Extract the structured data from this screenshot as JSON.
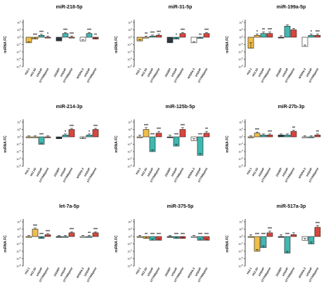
{
  "colors": {
    "H12.1": "#f0be49",
    "H12.1D": "#2f3a45",
    "1411HP": "#ffffff",
    "1411H": "#f0be49",
    "2102EP": "#2f3a45",
    "NTERA-2": "#ffffff",
    "1777NRpmet_a": "#3fb8b0",
    "1777NRpmet_b": "#d9453c",
    "stroke": "#1a1a1a"
  },
  "chart_data": [
    {
      "type": "bar",
      "title": "miR-218-5p",
      "ylabel": "miRNA FC",
      "log_scale": true,
      "ylim_exp": [
        -8,
        4
      ],
      "categories": [
        "H12.1",
        "H12.1D",
        "1411HP",
        "1777NRpmet",
        "2102EP",
        "1411HP",
        "1777NRpmet",
        "NTERA-2",
        "1411HP",
        "1777NRpmet"
      ],
      "groups": [
        {
          "values_exp": [
            -1.5,
            -0.5,
            0.5,
            0.0
          ],
          "errors": [
            0.3,
            0.3,
            0.3,
            0.3
          ],
          "significance": [
            "",
            "***",
            "***",
            "*"
          ],
          "colors": [
            "#f0be49",
            "#f0be49",
            "#3fb8b0",
            "#d9453c"
          ]
        },
        {
          "values_exp": [
            -1.0,
            1.0,
            0.0
          ],
          "errors": [
            0.3,
            0.3,
            0.3
          ],
          "significance": [
            "",
            "***",
            "***"
          ],
          "colors": [
            "#2f3a45",
            "#3fb8b0",
            "#d9453c"
          ]
        },
        {
          "values_exp": [
            -1.0,
            1.0,
            -0.5
          ],
          "errors": [
            0.3,
            0.3,
            0.3
          ],
          "significance": [
            "",
            "***",
            "**"
          ],
          "colors": [
            "#ffffff",
            "#3fb8b0",
            "#d9453c"
          ]
        }
      ]
    },
    {
      "type": "bar",
      "title": "miR-31-5p",
      "ylabel": "miRNA FC",
      "log_scale": true,
      "ylim_exp": [
        -8,
        4
      ],
      "categories": [
        "H12.1",
        "H12.1D",
        "1411HP",
        "1777NRpmet",
        "2102EP",
        "1411HP",
        "1777NRpmet",
        "NTERA-2",
        "1411HP",
        "1777NRpmet"
      ],
      "groups": [
        {
          "values_exp": [
            -1.0,
            0.0,
            0.3,
            0.5
          ],
          "errors": [
            0.3,
            0.3,
            0.3,
            0.3
          ],
          "significance": [
            "",
            "**",
            "***",
            "***"
          ],
          "colors": [
            "#f0be49",
            "#f0be49",
            "#3fb8b0",
            "#d9453c"
          ]
        },
        {
          "values_exp": [
            -1.5,
            -0.5,
            1.0
          ],
          "errors": [
            0.3,
            0.3,
            0.3
          ],
          "significance": [
            "",
            "*",
            "***"
          ],
          "colors": [
            "#2f3a45",
            "#3fb8b0",
            "#d9453c"
          ]
        },
        {
          "values_exp": [
            -1.5,
            -0.3,
            1.0
          ],
          "errors": [
            0.3,
            0.3,
            0.3
          ],
          "significance": [
            "",
            "**",
            "***"
          ],
          "colors": [
            "#ffffff",
            "#3fb8b0",
            "#d9453c"
          ]
        }
      ]
    },
    {
      "type": "bar",
      "title": "miR-199a-5p",
      "ylabel": "miRNA FC",
      "log_scale": true,
      "ylim_exp": [
        -8,
        4
      ],
      "categories": [
        "H12.1",
        "H12.1D",
        "1411HP",
        "1777NRpmet",
        "2102EP",
        "1411HP",
        "1777NRpmet",
        "NTERA-2",
        "1411HP",
        "1777NRpmet"
      ],
      "groups": [
        {
          "values_exp": [
            -3.0,
            0.5,
            1.0,
            1.0
          ],
          "errors": [
            1.5,
            0.4,
            0.4,
            0.4
          ],
          "significance": [
            "",
            "*",
            "**",
            "***"
          ],
          "colors": [
            "#f0be49",
            "#f0be49",
            "#3fb8b0",
            "#d9453c"
          ]
        },
        {
          "values_exp": [
            0.0,
            3.0,
            2.0
          ],
          "errors": [
            0.4,
            0.4,
            0.4
          ],
          "significance": [
            "",
            "",
            ""
          ],
          "colors": [
            "#2f3a45",
            "#3fb8b0",
            "#d9453c"
          ]
        },
        {
          "values_exp": [
            -2.5,
            0.5,
            0.5
          ],
          "errors": [
            0.4,
            0.4,
            0.4
          ],
          "significance": [
            "",
            "*",
            "***"
          ],
          "colors": [
            "#ffffff",
            "#3fb8b0",
            "#d9453c"
          ]
        }
      ]
    },
    {
      "type": "bar",
      "title": "miR-214-3p",
      "ylabel": "miRNA FC",
      "log_scale": true,
      "ylim_exp": [
        -8,
        4
      ],
      "categories": [
        "H12.1",
        "H12.1D",
        "1411HP",
        "1777NRpmet",
        "2102EP",
        "1411HP",
        "1777NRpmet",
        "NTERA-2",
        "1411HP",
        "1777NRpmet"
      ],
      "groups": [
        {
          "values_exp": [
            0.0,
            0.0,
            -2.0,
            0.0
          ],
          "errors": [
            0.3,
            0.3,
            0.3,
            0.3
          ],
          "significance": [
            "",
            "",
            "***",
            ""
          ],
          "colors": [
            "#f0be49",
            "#f0be49",
            "#3fb8b0",
            "#d9453c"
          ]
        },
        {
          "values_exp": [
            -0.5,
            0.5,
            2.0
          ],
          "errors": [
            0.3,
            0.3,
            0.3
          ],
          "significance": [
            "",
            "*",
            "***"
          ],
          "colors": [
            "#2f3a45",
            "#3fb8b0",
            "#d9453c"
          ]
        },
        {
          "values_exp": [
            -0.5,
            0.5,
            2.0
          ],
          "errors": [
            0.3,
            0.3,
            0.3
          ],
          "significance": [
            "",
            "*",
            "***"
          ],
          "colors": [
            "#ffffff",
            "#3fb8b0",
            "#d9453c"
          ]
        }
      ]
    },
    {
      "type": "bar",
      "title": "miR-125b-5p",
      "ylabel": "miRNA FC",
      "log_scale": true,
      "ylim_exp": [
        -8,
        4
      ],
      "categories": [
        "H12.1",
        "H12.1D",
        "1411HP",
        "1777NRpmet",
        "2102EP",
        "1411HP",
        "1777NRpmet",
        "NTERA-2",
        "1411HP",
        "1777NRpmet"
      ],
      "groups": [
        {
          "values_exp": [
            0.0,
            2.0,
            -4.0,
            1.0
          ],
          "errors": [
            0.5,
            0.5,
            0.5,
            0.5
          ],
          "significance": [
            "",
            "***",
            "***",
            "***"
          ],
          "colors": [
            "#f0be49",
            "#f0be49",
            "#3fb8b0",
            "#d9453c"
          ]
        },
        {
          "values_exp": [
            0.0,
            -2.5,
            2.0
          ],
          "errors": [
            0.5,
            0.5,
            0.5
          ],
          "significance": [
            "",
            "***",
            "***"
          ],
          "colors": [
            "#2f3a45",
            "#3fb8b0",
            "#d9453c"
          ]
        },
        {
          "values_exp": [
            -1.0,
            -5.0,
            1.0
          ],
          "errors": [
            0.5,
            0.5,
            0.5
          ],
          "significance": [
            "",
            "***",
            "**"
          ],
          "colors": [
            "#ffffff",
            "#3fb8b0",
            "#d9453c"
          ]
        }
      ]
    },
    {
      "type": "bar",
      "title": "miR-27b-3p",
      "ylabel": "miRNA FC",
      "log_scale": true,
      "ylim_exp": [
        -8,
        4
      ],
      "categories": [
        "H12.1",
        "H12.1D",
        "1411HP",
        "1777NRpmet",
        "2102EP",
        "1411HP",
        "1777NRpmet",
        "NTERA-2",
        "1411HP",
        "1777NRpmet"
      ],
      "groups": [
        {
          "values_exp": [
            0.0,
            1.0,
            0.5,
            0.5
          ],
          "errors": [
            0.3,
            0.3,
            0.3,
            0.3
          ],
          "significance": [
            "",
            "***",
            "",
            "***"
          ],
          "colors": [
            "#f0be49",
            "#f0be49",
            "#3fb8b0",
            "#d9453c"
          ]
        },
        {
          "values_exp": [
            0.5,
            0.5,
            1.5
          ],
          "errors": [
            0.3,
            0.3,
            0.3
          ],
          "significance": [
            "",
            "",
            "**"
          ],
          "colors": [
            "#2f3a45",
            "#3fb8b0",
            "#d9453c"
          ]
        },
        {
          "values_exp": [
            0.0,
            0.0,
            0.5
          ],
          "errors": [
            0.3,
            0.3,
            0.3
          ],
          "significance": [
            "",
            "",
            "**"
          ],
          "colors": [
            "#ffffff",
            "#3fb8b0",
            "#d9453c"
          ]
        }
      ]
    },
    {
      "type": "bar",
      "title": "let-7a-5p",
      "ylabel": "miRNA FC",
      "log_scale": true,
      "ylim_exp": [
        -8,
        4
      ],
      "categories": [
        "H12.1",
        "H12.1D",
        "1411HP",
        "1777NRpmet",
        "2102EP",
        "1411HP",
        "1777NRpmet",
        "NTERA-2",
        "1411HP",
        "1777NRpmet"
      ],
      "groups": [
        {
          "values_exp": [
            0.0,
            2.0,
            -0.5,
            0.5
          ],
          "errors": [
            0.3,
            0.3,
            0.3,
            0.3
          ],
          "significance": [
            "",
            "***",
            "***",
            "***"
          ],
          "colors": [
            "#f0be49",
            "#f0be49",
            "#3fb8b0",
            "#d9453c"
          ]
        },
        {
          "values_exp": [
            0.0,
            0.0,
            1.0
          ],
          "errors": [
            0.3,
            0.3,
            0.3
          ],
          "significance": [
            "",
            "",
            "***"
          ],
          "colors": [
            "#2f3a45",
            "#3fb8b0",
            "#d9453c"
          ]
        },
        {
          "values_exp": [
            0.0,
            0.0,
            1.0
          ],
          "errors": [
            0.3,
            0.3,
            0.3
          ],
          "significance": [
            "",
            "**",
            "***"
          ],
          "colors": [
            "#ffffff",
            "#3fb8b0",
            "#d9453c"
          ]
        }
      ]
    },
    {
      "type": "bar",
      "title": "miR-375-5p",
      "ylabel": "miRNA FC",
      "log_scale": true,
      "ylim_exp": [
        -8,
        4
      ],
      "categories": [
        "H12.1",
        "H12.1D",
        "1411HP",
        "1777NRpmet",
        "2102EP",
        "1411HP",
        "1777NRpmet",
        "NTERA-2",
        "1411HP",
        "1777NRpmet"
      ],
      "groups": [
        {
          "values_exp": [
            0.0,
            -0.5,
            -1.0,
            -1.0
          ],
          "errors": [
            0.3,
            0.3,
            0.3,
            0.3
          ],
          "significance": [
            "",
            "**",
            "***",
            "***"
          ],
          "colors": [
            "#f0be49",
            "#f0be49",
            "#3fb8b0",
            "#d9453c"
          ]
        },
        {
          "values_exp": [
            0.0,
            -0.5,
            -0.5
          ],
          "errors": [
            0.3,
            0.3,
            0.3
          ],
          "significance": [
            "",
            "***",
            "***"
          ],
          "colors": [
            "#2f3a45",
            "#3fb8b0",
            "#d9453c"
          ]
        },
        {
          "values_exp": [
            0.0,
            -1.0,
            -1.0
          ],
          "errors": [
            0.3,
            0.3,
            0.3
          ],
          "significance": [
            "",
            "***",
            "***"
          ],
          "colors": [
            "#ffffff",
            "#3fb8b0",
            "#d9453c"
          ]
        }
      ]
    },
    {
      "type": "bar",
      "title": "miR-517a-3p",
      "ylabel": "miRNA FC",
      "log_scale": true,
      "ylim_exp": [
        -8,
        4
      ],
      "categories": [
        "H12.1",
        "H12.1D",
        "1411HP",
        "1777NRpmet",
        "2102EP",
        "1411HP",
        "1777NRpmet",
        "NTERA-2",
        "1411HP",
        "1777NRpmet"
      ],
      "groups": [
        {
          "values_exp": [
            0.0,
            -4.0,
            -3.0,
            1.0
          ],
          "errors": [
            0.5,
            0.5,
            0.5,
            0.5
          ],
          "significance": [
            "",
            "***",
            "***",
            "***"
          ],
          "colors": [
            "#f0be49",
            "#f0be49",
            "#3fb8b0",
            "#d9453c"
          ]
        },
        {
          "values_exp": [
            0.0,
            -4.5,
            0.5
          ],
          "errors": [
            0.5,
            0.5,
            0.5
          ],
          "significance": [
            "",
            "***",
            ""
          ],
          "colors": [
            "#2f3a45",
            "#3fb8b0",
            "#d9453c"
          ]
        },
        {
          "values_exp": [
            -1.0,
            -2.0,
            2.5
          ],
          "errors": [
            0.5,
            0.5,
            0.5
          ],
          "significance": [
            "",
            "",
            "***"
          ],
          "colors": [
            "#ffffff",
            "#3fb8b0",
            "#d9453c"
          ]
        }
      ]
    }
  ]
}
